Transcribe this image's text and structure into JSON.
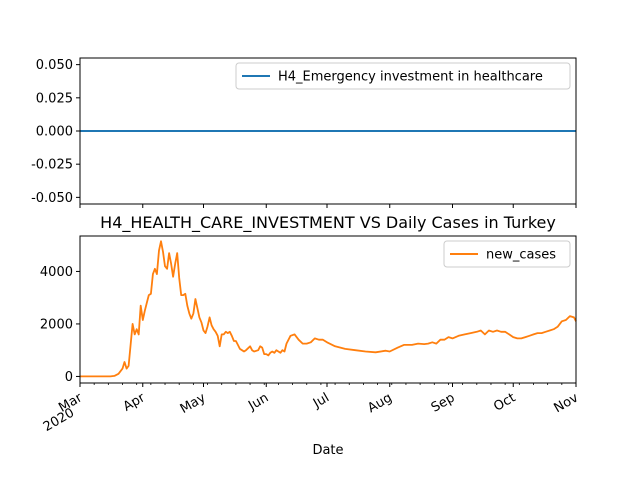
{
  "chart_data": [
    {
      "type": "line",
      "title": "",
      "xlabel": "",
      "ylabel": "",
      "ylim": [
        -0.055,
        0.055
      ],
      "yticks": [
        "0.050",
        "0.025",
        "0.000",
        "-0.025",
        "-0.050"
      ],
      "yticks_values": [
        0.05,
        0.025,
        0.0,
        -0.025,
        -0.05
      ],
      "legend_position": "upper right",
      "grid": false,
      "series": [
        {
          "name": "H4_Emergency investment in healthcare",
          "color": "#1f77b4",
          "x": [
            "2020-03-01",
            "2020-11-01"
          ],
          "values": [
            0,
            0
          ]
        }
      ]
    },
    {
      "type": "line",
      "title": "H4_HEALTH_CARE_INVESTMENT VS Daily Cases in Turkey",
      "xlabel": "Date",
      "ylabel": "",
      "ylim": [
        -250,
        5350
      ],
      "yticks": [
        "0",
        "2000",
        "4000"
      ],
      "yticks_values": [
        0,
        2000,
        4000
      ],
      "xticks": [
        {
          "label": "Mar",
          "sublabel": "2020",
          "date": "2020-03-01"
        },
        {
          "label": "Apr",
          "date": "2020-04-01"
        },
        {
          "label": "May",
          "date": "2020-05-01"
        },
        {
          "label": "Jun",
          "date": "2020-06-01"
        },
        {
          "label": "Jul",
          "date": "2020-07-01"
        },
        {
          "label": "Aug",
          "date": "2020-08-01"
        },
        {
          "label": "Sep",
          "date": "2020-09-01"
        },
        {
          "label": "Oct",
          "date": "2020-10-01"
        },
        {
          "label": "Nov",
          "date": "2020-11-01"
        }
      ],
      "legend_position": "upper right",
      "grid": false,
      "series": [
        {
          "name": "new_cases",
          "color": "#ff7f0e",
          "points": [
            [
              "2020-03-01",
              0
            ],
            [
              "2020-03-10",
              0
            ],
            [
              "2020-03-16",
              0
            ],
            [
              "2020-03-18",
              20
            ],
            [
              "2020-03-20",
              100
            ],
            [
              "2020-03-22",
              300
            ],
            [
              "2020-03-23",
              550
            ],
            [
              "2020-03-24",
              300
            ],
            [
              "2020-03-25",
              400
            ],
            [
              "2020-03-26",
              1200
            ],
            [
              "2020-03-27",
              2000
            ],
            [
              "2020-03-28",
              1600
            ],
            [
              "2020-03-29",
              1800
            ],
            [
              "2020-03-30",
              1600
            ],
            [
              "2020-03-31",
              2700
            ],
            [
              "2020-04-01",
              2150
            ],
            [
              "2020-04-02",
              2500
            ],
            [
              "2020-04-03",
              2800
            ],
            [
              "2020-04-04",
              3100
            ],
            [
              "2020-04-05",
              3150
            ],
            [
              "2020-04-06",
              3900
            ],
            [
              "2020-04-07",
              4100
            ],
            [
              "2020-04-08",
              3900
            ],
            [
              "2020-04-09",
              4800
            ],
            [
              "2020-04-10",
              5150
            ],
            [
              "2020-04-11",
              4750
            ],
            [
              "2020-04-12",
              4200
            ],
            [
              "2020-04-13",
              4100
            ],
            [
              "2020-04-14",
              4700
            ],
            [
              "2020-04-15",
              4300
            ],
            [
              "2020-04-16",
              3800
            ],
            [
              "2020-04-17",
              4300
            ],
            [
              "2020-04-18",
              4700
            ],
            [
              "2020-04-19",
              3750
            ],
            [
              "2020-04-20",
              3100
            ],
            [
              "2020-04-21",
              3100
            ],
            [
              "2020-04-22",
              3150
            ],
            [
              "2020-04-23",
              2700
            ],
            [
              "2020-04-24",
              2400
            ],
            [
              "2020-04-25",
              2200
            ],
            [
              "2020-04-26",
              2400
            ],
            [
              "2020-04-27",
              2950
            ],
            [
              "2020-04-28",
              2600
            ],
            [
              "2020-04-29",
              2250
            ],
            [
              "2020-04-30",
              2050
            ],
            [
              "2020-05-01",
              1750
            ],
            [
              "2020-05-02",
              1650
            ],
            [
              "2020-05-03",
              1900
            ],
            [
              "2020-05-04",
              2250
            ],
            [
              "2020-05-05",
              1950
            ],
            [
              "2020-05-06",
              1800
            ],
            [
              "2020-05-07",
              1700
            ],
            [
              "2020-05-08",
              1550
            ],
            [
              "2020-05-09",
              1150
            ],
            [
              "2020-05-10",
              1600
            ],
            [
              "2020-05-11",
              1600
            ],
            [
              "2020-05-12",
              1700
            ],
            [
              "2020-05-13",
              1650
            ],
            [
              "2020-05-14",
              1700
            ],
            [
              "2020-05-15",
              1550
            ],
            [
              "2020-05-16",
              1350
            ],
            [
              "2020-05-17",
              1350
            ],
            [
              "2020-05-18",
              1200
            ],
            [
              "2020-05-19",
              1050
            ],
            [
              "2020-05-20",
              1000
            ],
            [
              "2020-05-21",
              950
            ],
            [
              "2020-05-22",
              1000
            ],
            [
              "2020-05-24",
              1150
            ],
            [
              "2020-05-25",
              1000
            ],
            [
              "2020-05-26",
              950
            ],
            [
              "2020-05-28",
              1000
            ],
            [
              "2020-05-29",
              1150
            ],
            [
              "2020-05-30",
              1100
            ],
            [
              "2020-05-31",
              850
            ],
            [
              "2020-06-01",
              850
            ],
            [
              "2020-06-02",
              800
            ],
            [
              "2020-06-03",
              900
            ],
            [
              "2020-06-04",
              950
            ],
            [
              "2020-06-05",
              900
            ],
            [
              "2020-06-06",
              1000
            ],
            [
              "2020-06-08",
              900
            ],
            [
              "2020-06-09",
              1000
            ],
            [
              "2020-06-10",
              950
            ],
            [
              "2020-06-11",
              1250
            ],
            [
              "2020-06-13",
              1550
            ],
            [
              "2020-06-15",
              1600
            ],
            [
              "2020-06-17",
              1400
            ],
            [
              "2020-06-19",
              1250
            ],
            [
              "2020-06-21",
              1250
            ],
            [
              "2020-06-23",
              1300
            ],
            [
              "2020-06-25",
              1450
            ],
            [
              "2020-06-27",
              1400
            ],
            [
              "2020-06-29",
              1400
            ],
            [
              "2020-07-01",
              1300
            ],
            [
              "2020-07-05",
              1150
            ],
            [
              "2020-07-10",
              1050
            ],
            [
              "2020-07-15",
              1000
            ],
            [
              "2020-07-20",
              950
            ],
            [
              "2020-07-25",
              920
            ],
            [
              "2020-07-30",
              980
            ],
            [
              "2020-08-01",
              950
            ],
            [
              "2020-08-05",
              1100
            ],
            [
              "2020-08-08",
              1200
            ],
            [
              "2020-08-12",
              1200
            ],
            [
              "2020-08-15",
              1250
            ],
            [
              "2020-08-18",
              1230
            ],
            [
              "2020-08-20",
              1250
            ],
            [
              "2020-08-22",
              1300
            ],
            [
              "2020-08-24",
              1250
            ],
            [
              "2020-08-26",
              1400
            ],
            [
              "2020-08-28",
              1400
            ],
            [
              "2020-08-30",
              1500
            ],
            [
              "2020-09-01",
              1450
            ],
            [
              "2020-09-04",
              1550
            ],
            [
              "2020-09-07",
              1600
            ],
            [
              "2020-09-10",
              1650
            ],
            [
              "2020-09-13",
              1700
            ],
            [
              "2020-09-15",
              1750
            ],
            [
              "2020-09-17",
              1600
            ],
            [
              "2020-09-19",
              1750
            ],
            [
              "2020-09-21",
              1700
            ],
            [
              "2020-09-23",
              1750
            ],
            [
              "2020-09-25",
              1700
            ],
            [
              "2020-09-27",
              1700
            ],
            [
              "2020-09-29",
              1600
            ],
            [
              "2020-10-01",
              1500
            ],
            [
              "2020-10-03",
              1450
            ],
            [
              "2020-10-05",
              1450
            ],
            [
              "2020-10-07",
              1500
            ],
            [
              "2020-10-09",
              1550
            ],
            [
              "2020-10-11",
              1600
            ],
            [
              "2020-10-13",
              1650
            ],
            [
              "2020-10-15",
              1650
            ],
            [
              "2020-10-17",
              1700
            ],
            [
              "2020-10-19",
              1750
            ],
            [
              "2020-10-21",
              1800
            ],
            [
              "2020-10-23",
              1900
            ],
            [
              "2020-10-25",
              2100
            ],
            [
              "2020-10-27",
              2150
            ],
            [
              "2020-10-29",
              2300
            ],
            [
              "2020-10-31",
              2250
            ],
            [
              "2020-11-01",
              2100
            ]
          ]
        }
      ]
    }
  ]
}
